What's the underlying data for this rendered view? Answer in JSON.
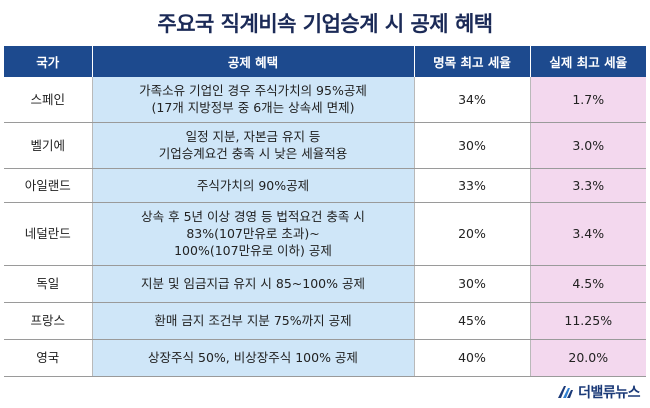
{
  "title": "주요국 직계비속 기업승계 시 공제 혜택",
  "headers": [
    "국가",
    "공제 혜택",
    "명목 최고 세율",
    "실제 최고 세율"
  ],
  "rows": [
    {
      "country": "스페인",
      "benefit": [
        "가족소유 기업인 경우 주식가치의 95%공제",
        "(17개 지방정부 중 6개는 상속세 면제)"
      ],
      "nominal": "34%",
      "actual": "1.7%"
    },
    {
      "country": "벨기에",
      "benefit": [
        "일정 지분, 자본금 유지 등",
        "기업승계요건 충족 시 낮은 세율적용"
      ],
      "nominal": "30%",
      "actual": "3.0%"
    },
    {
      "country": "아일랜드",
      "benefit": [
        "주식가치의 90%공제"
      ],
      "nominal": "33%",
      "actual": "3.3%"
    },
    {
      "country": "네덜란드",
      "benefit": [
        "상속 후 5년 이상 경영 등 법적요건 충족 시",
        "83%(107만유로 초과)~",
        "100%(107만유로 이하) 공제"
      ],
      "nominal": "20%",
      "actual": "3.4%"
    },
    {
      "country": "독일",
      "benefit": [
        "지분 및 임금지급 유지 시 85~100% 공제"
      ],
      "nominal": "30%",
      "actual": "4.5%"
    },
    {
      "country": "프랑스",
      "benefit": [
        "환매 금지 조건부 지분 75%까지 공제"
      ],
      "nominal": "45%",
      "actual": "11.25%"
    },
    {
      "country": "영국",
      "benefit": [
        "상장주식 50%, 비상장주식 100% 공제"
      ],
      "nominal": "40%",
      "actual": "20.0%"
    }
  ],
  "brand": {
    "name": "더밸류뉴스",
    "mark_icon": "the-value-news-logo-icon"
  },
  "colors": {
    "header_bg": "#1d4a8e",
    "benefit_bg": "#cfe6f8",
    "actual_bg": "#f3d8ee",
    "title": "#1b2a57"
  }
}
